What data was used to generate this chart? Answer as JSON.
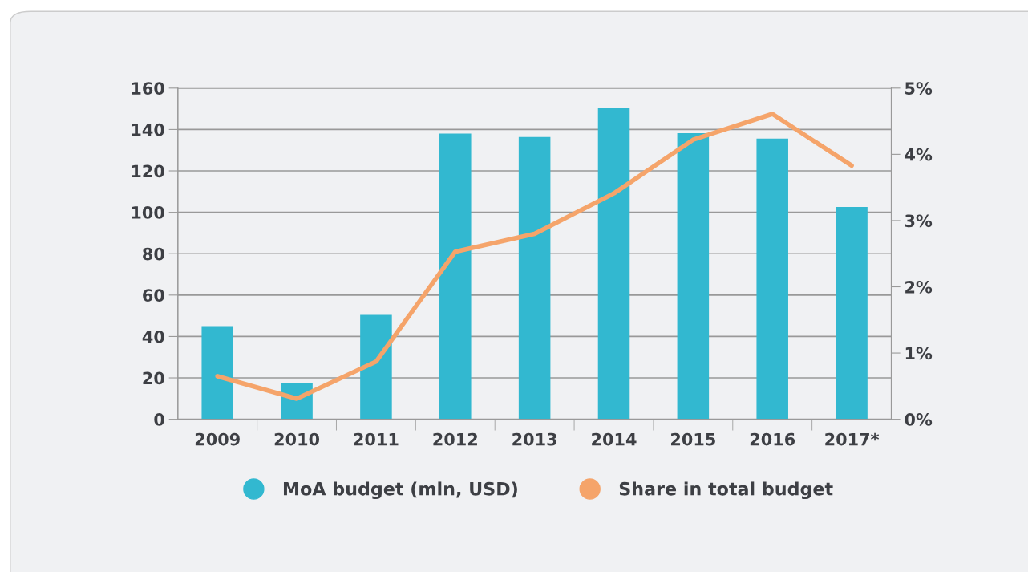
{
  "chart_data": {
    "type": "bar",
    "categories": [
      "2009",
      "2010",
      "2011",
      "2012",
      "2013",
      "2014",
      "2015",
      "2016",
      "2017*"
    ],
    "series": [
      {
        "name": "MoA budget (mln, USD)",
        "color": "#32b8d0",
        "values": [
          45,
          17.3,
          50.4,
          138,
          136.4,
          150.5,
          138.2,
          135.6,
          102.6
        ]
      },
      {
        "name": "Share in total budget",
        "type": "line",
        "axis": "y2",
        "color": "#f5a46a",
        "values": [
          0.65,
          0.31,
          0.87,
          2.53,
          2.8,
          3.41,
          4.22,
          4.61,
          3.83
        ]
      }
    ],
    "ylim": [
      0,
      160
    ],
    "yticks": [
      0,
      20,
      40,
      60,
      80,
      100,
      120,
      140,
      160
    ],
    "y2lim": [
      0,
      5
    ],
    "y2ticks": [
      {
        "value": 0,
        "label": "0%"
      },
      {
        "value": 1,
        "label": "1%"
      },
      {
        "value": 2,
        "label": "2%"
      },
      {
        "value": 3,
        "label": "3%"
      },
      {
        "value": 4,
        "label": "4%"
      },
      {
        "value": 5,
        "label": "5%"
      }
    ],
    "grid": "y",
    "legend": "bottom",
    "marker": "none",
    "line_style": "solid"
  }
}
